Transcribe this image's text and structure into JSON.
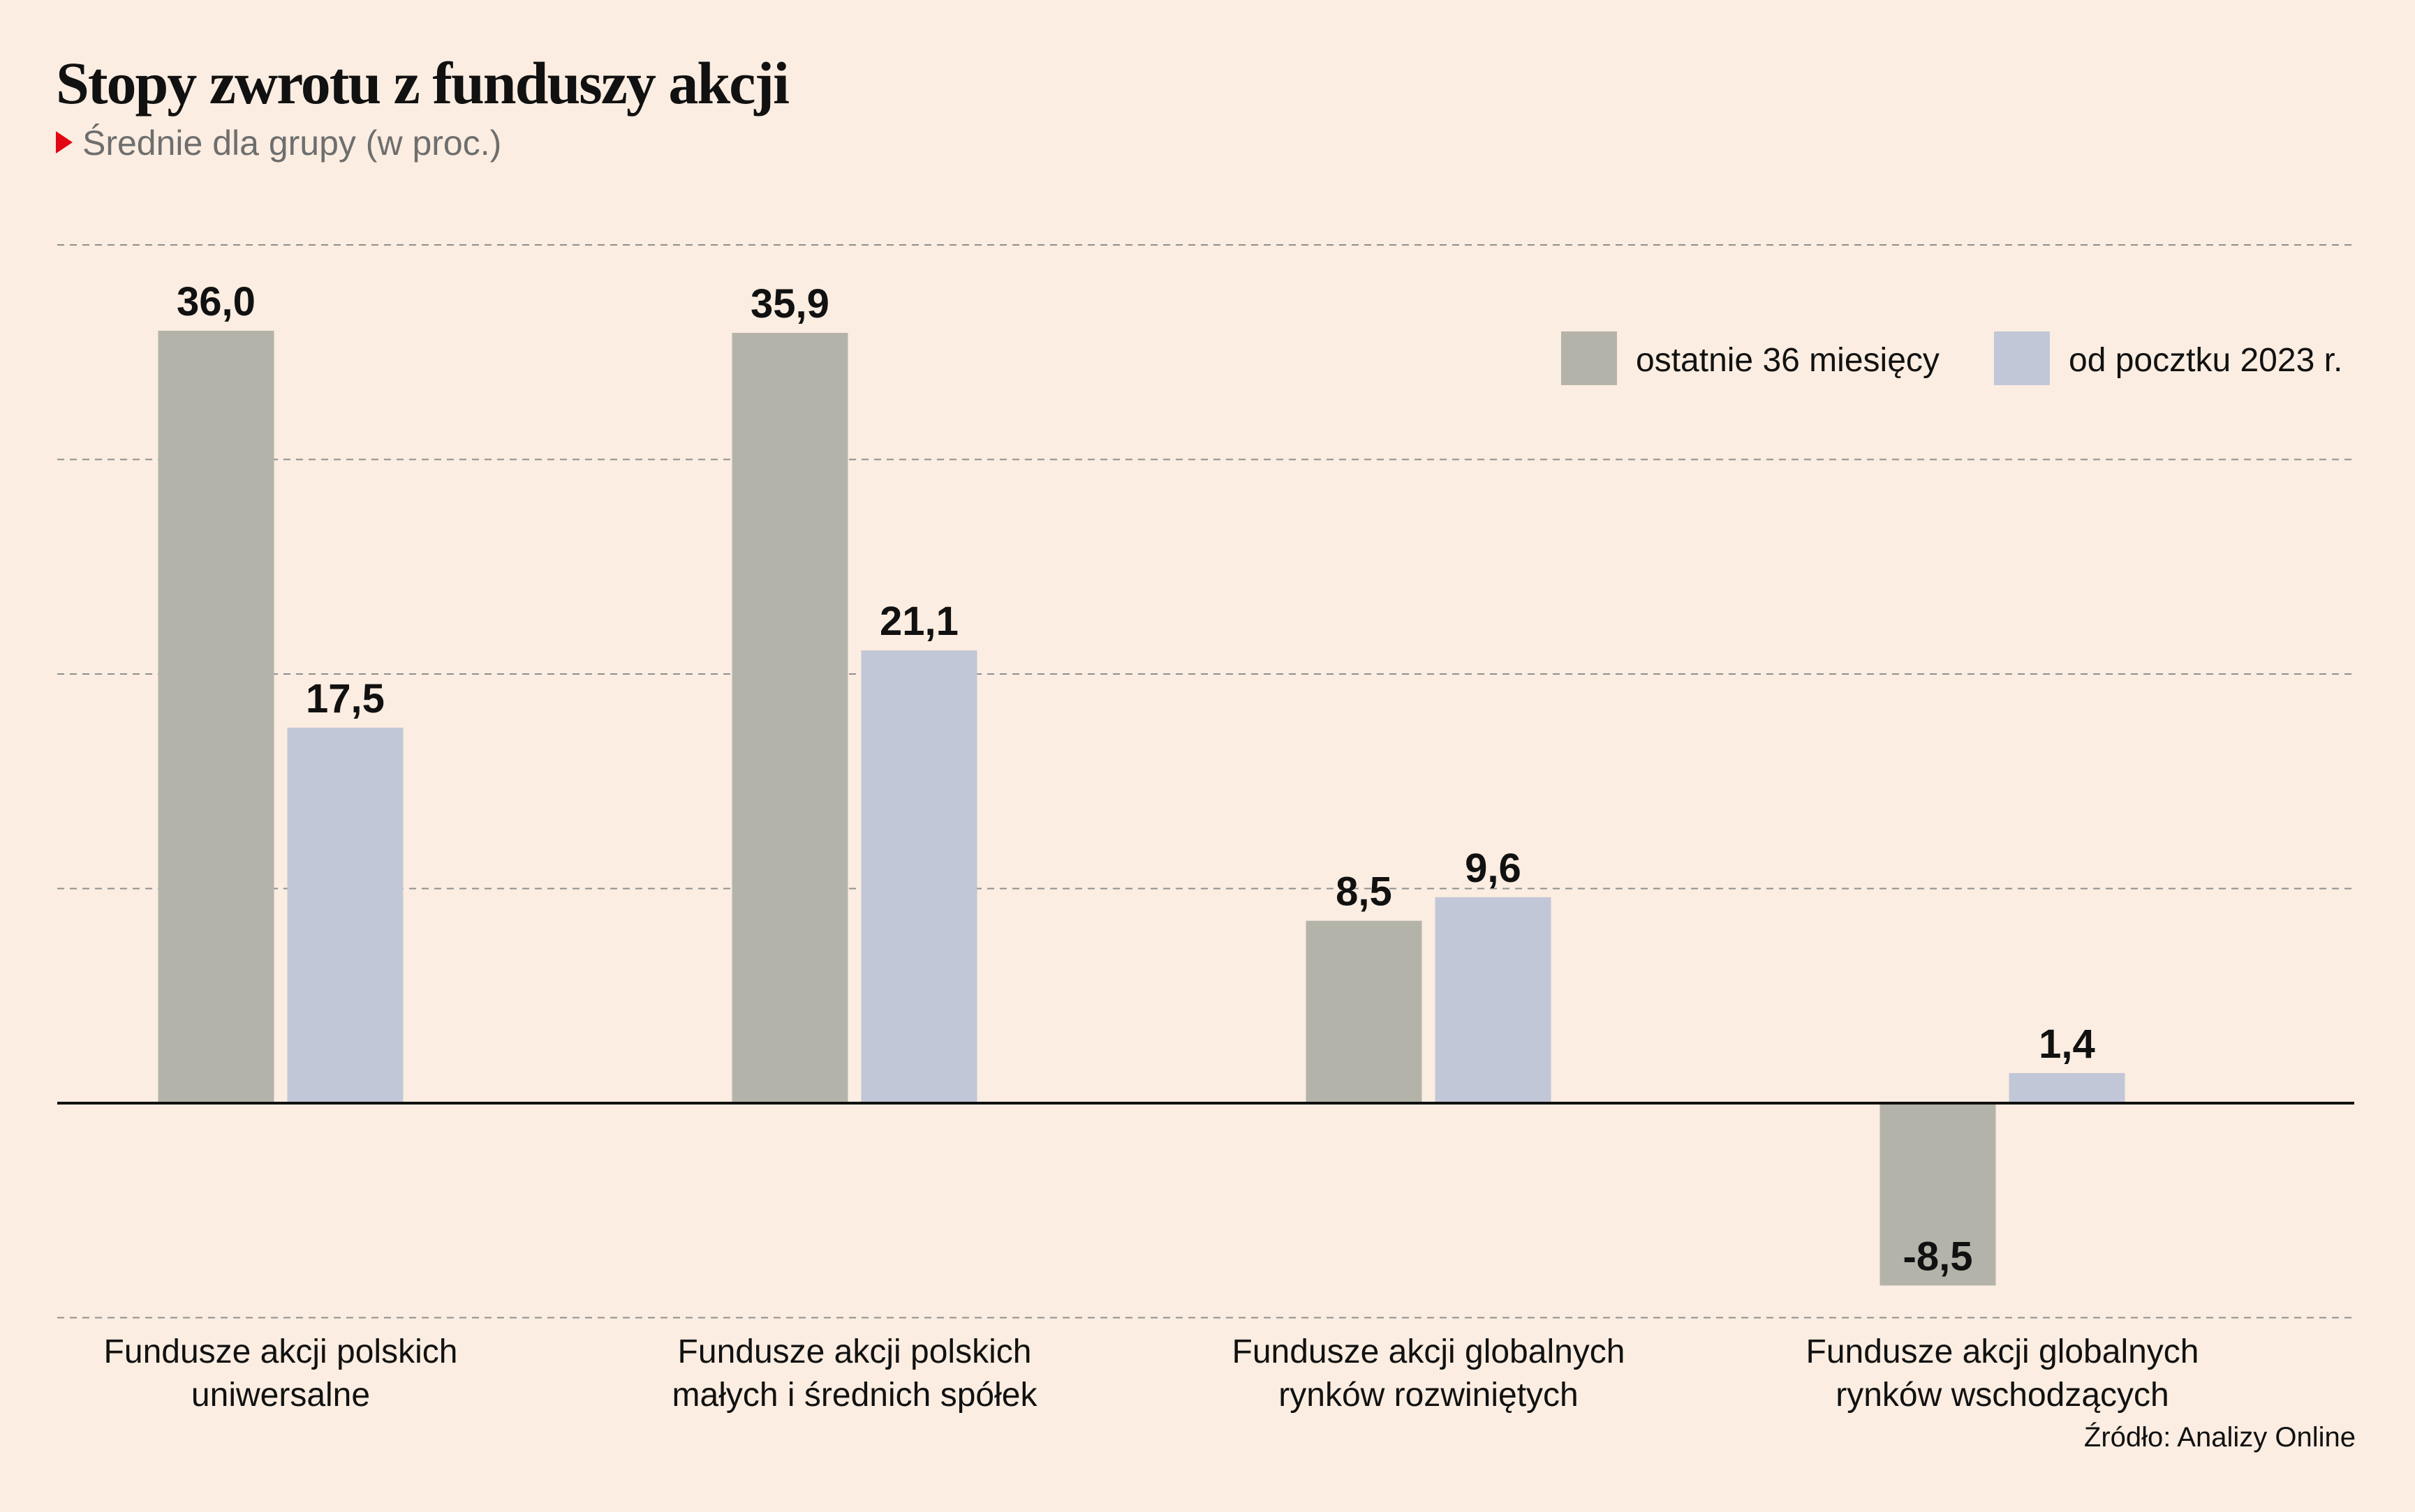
{
  "title": "Stopy zwrotu z funduszy akcji",
  "subtitle": "Średnie dla grupy (w proc.)",
  "source": "Źródło: Analizy Online",
  "colors": {
    "background": "#fbede1",
    "series_1": "#b4b3aa",
    "series_2": "#c2c7d7",
    "subtitle_marker": "#e30613"
  },
  "chart_data": {
    "type": "bar",
    "categories": [
      [
        "Fundusze akcji polskich",
        "uniwersalne"
      ],
      [
        "Fundusze akcji polskich",
        "małych i średnich spółek"
      ],
      [
        "Fundusze akcji globalnych",
        "rynków rozwiniętych"
      ],
      [
        "Fundusze akcji globalnych",
        "rynków wschodzących"
      ]
    ],
    "series": [
      {
        "name": "ostatnie 36 miesięcy",
        "values": [
          36.0,
          35.9,
          8.5,
          -8.5
        ],
        "labels": [
          "36,0",
          "35,9",
          "8,5",
          "-8,5"
        ]
      },
      {
        "name": "od pocztku 2023 r.",
        "values": [
          17.5,
          21.1,
          9.6,
          1.4
        ],
        "labels": [
          "17,5",
          "21,1",
          "9,6",
          "1,4"
        ]
      }
    ],
    "ylim": [
      -10,
      40
    ],
    "gridlines": [
      40,
      30,
      20,
      10,
      -10
    ],
    "zero_line": true,
    "legend": "top-right",
    "xlabel": "",
    "ylabel": ""
  }
}
